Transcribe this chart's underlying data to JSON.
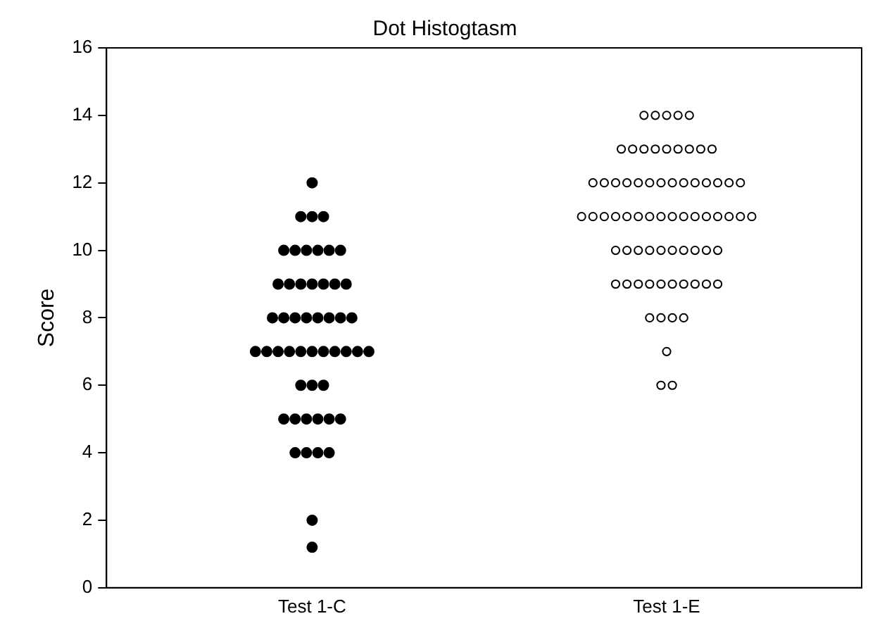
{
  "chart_data": {
    "type": "scatter",
    "title": "Dot Histogtasm",
    "ylabel": "Score",
    "categories": [
      "Test 1-C",
      "Test 1-E"
    ],
    "ylim": [
      0,
      16
    ],
    "yticks": [
      0,
      2,
      4,
      6,
      8,
      10,
      12,
      14,
      16
    ],
    "grid": false,
    "legend": false,
    "marker": "circle",
    "series": [
      {
        "color": "#000000",
        "x": [
          "Test 1-C",
          "Test 1-C",
          "Test 1-C",
          "Test 1-C",
          "Test 1-C",
          "Test 1-C",
          "Test 1-C",
          "Test 1-C",
          "Test 1-C",
          "Test 1-C",
          "Test 1-C",
          "Test 1-C",
          "Test 1-C",
          "Test 1-C",
          "Test 1-C",
          "Test 1-C",
          "Test 1-C",
          "Test 1-C",
          "Test 1-C",
          "Test 1-C",
          "Test 1-C",
          "Test 1-C",
          "Test 1-C",
          "Test 1-C",
          "Test 1-C",
          "Test 1-C",
          "Test 1-C",
          "Test 1-C",
          "Test 1-C",
          "Test 1-C",
          "Test 1-C",
          "Test 1-C",
          "Test 1-C",
          "Test 1-C",
          "Test 1-C",
          "Test 1-C",
          "Test 1-C",
          "Test 1-C",
          "Test 1-C",
          "Test 1-C",
          "Test 1-C",
          "Test 1-C",
          "Test 1-C",
          "Test 1-C",
          "Test 1-C",
          "Test 1-C",
          "Test 1-C",
          "Test 1-C",
          "Test 1-C",
          "Test 1-C",
          "Test 1-C"
        ],
        "values": [
          12,
          11,
          11,
          11,
          10,
          10,
          10,
          10,
          10,
          10,
          9,
          9,
          9,
          9,
          9,
          9,
          9,
          8,
          8,
          8,
          8,
          8,
          8,
          8,
          8,
          7,
          7,
          7,
          7,
          7,
          7,
          7,
          7,
          7,
          7,
          7,
          6,
          6,
          6,
          5,
          5,
          5,
          5,
          5,
          5,
          4,
          4,
          4,
          4,
          2,
          1.2
        ]
      },
      {
        "color": "#000000",
        "x": [
          "Test 1-E",
          "Test 1-E",
          "Test 1-E",
          "Test 1-E",
          "Test 1-E",
          "Test 1-E",
          "Test 1-E",
          "Test 1-E",
          "Test 1-E",
          "Test 1-E",
          "Test 1-E",
          "Test 1-E",
          "Test 1-E",
          "Test 1-E",
          "Test 1-E",
          "Test 1-E",
          "Test 1-E",
          "Test 1-E",
          "Test 1-E",
          "Test 1-E",
          "Test 1-E",
          "Test 1-E",
          "Test 1-E",
          "Test 1-E",
          "Test 1-E",
          "Test 1-E",
          "Test 1-E",
          "Test 1-E",
          "Test 1-E",
          "Test 1-E",
          "Test 1-E",
          "Test 1-E",
          "Test 1-E",
          "Test 1-E",
          "Test 1-E",
          "Test 1-E",
          "Test 1-E",
          "Test 1-E",
          "Test 1-E",
          "Test 1-E",
          "Test 1-E",
          "Test 1-E",
          "Test 1-E",
          "Test 1-E",
          "Test 1-E",
          "Test 1-E",
          "Test 1-E",
          "Test 1-E",
          "Test 1-E",
          "Test 1-E",
          "Test 1-E",
          "Test 1-E",
          "Test 1-E",
          "Test 1-E",
          "Test 1-E",
          "Test 1-E",
          "Test 1-E",
          "Test 1-E",
          "Test 1-E",
          "Test 1-E",
          "Test 1-E",
          "Test 1-E",
          "Test 1-E",
          "Test 1-E",
          "Test 1-E",
          "Test 1-E",
          "Test 1-E",
          "Test 1-E",
          "Test 1-E",
          "Test 1-E",
          "Test 1-E"
        ],
        "values": [
          14,
          14,
          14,
          14,
          14,
          13,
          13,
          13,
          13,
          13,
          13,
          13,
          13,
          13,
          12,
          12,
          12,
          12,
          12,
          12,
          12,
          12,
          12,
          12,
          12,
          12,
          12,
          12,
          11,
          11,
          11,
          11,
          11,
          11,
          11,
          11,
          11,
          11,
          11,
          11,
          11,
          11,
          11,
          11,
          10,
          10,
          10,
          10,
          10,
          10,
          10,
          10,
          10,
          10,
          9,
          9,
          9,
          9,
          9,
          9,
          9,
          9,
          9,
          9,
          8,
          8,
          8,
          8,
          7,
          6,
          6
        ]
      }
    ]
  }
}
